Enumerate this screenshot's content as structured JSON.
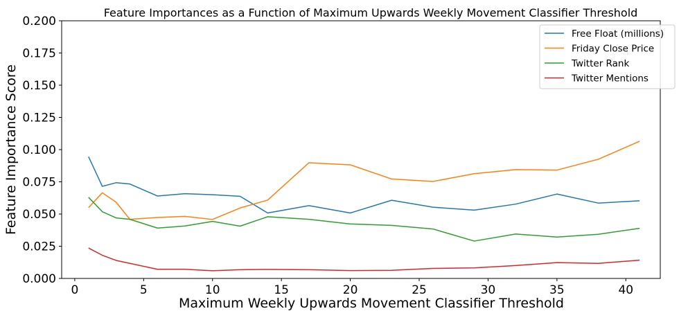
{
  "chart_data": {
    "type": "line",
    "title": "Feature Importances as a Function of Maximum Upwards Weekly Movement Classifier Threshold",
    "xlabel": "Maximum Weekly Upwards Movement Classifier Threshold",
    "ylabel": "Feature Importance Score",
    "xlim": [
      -0.95,
      42.5
    ],
    "ylim": [
      0.0,
      0.2
    ],
    "xticks": [
      0,
      5,
      10,
      15,
      20,
      25,
      30,
      35,
      40
    ],
    "yticks": [
      0.0,
      0.025,
      0.05,
      0.075,
      0.1,
      0.125,
      0.15,
      0.175,
      0.2
    ],
    "xtick_labels": [
      "0",
      "5",
      "10",
      "15",
      "20",
      "25",
      "30",
      "35",
      "40"
    ],
    "ytick_labels": [
      "0.000",
      "0.025",
      "0.050",
      "0.075",
      "0.100",
      "0.125",
      "0.150",
      "0.175",
      "0.200"
    ],
    "grid": false,
    "legend_position": "top-right",
    "x": [
      1,
      2,
      3,
      4,
      6,
      8,
      10,
      12,
      14,
      17,
      20,
      23,
      26,
      29,
      32,
      35,
      38,
      41
    ],
    "series": [
      {
        "name": "Free Float (millions)",
        "color": "#1f77b4",
        "values": [
          0.0945,
          0.0715,
          0.0743,
          0.0733,
          0.064,
          0.0658,
          0.065,
          0.0638,
          0.0508,
          0.0565,
          0.0508,
          0.0607,
          0.0553,
          0.053,
          0.0577,
          0.0655,
          0.0585,
          0.0603
        ]
      },
      {
        "name": "Friday Close Price",
        "color": "#ff7f0e",
        "values": [
          0.055,
          0.0665,
          0.0592,
          0.0459,
          0.0473,
          0.0482,
          0.0458,
          0.0547,
          0.0608,
          0.0898,
          0.0882,
          0.0772,
          0.0753,
          0.0813,
          0.0845,
          0.0841,
          0.0925,
          0.1065
        ]
      },
      {
        "name": "Twitter Rank",
        "color": "#2ca02c",
        "values": [
          0.063,
          0.0518,
          0.047,
          0.0459,
          0.0391,
          0.0407,
          0.0443,
          0.0406,
          0.0479,
          0.0459,
          0.0423,
          0.0412,
          0.0384,
          0.029,
          0.0345,
          0.0321,
          0.0343,
          0.0389
        ]
      },
      {
        "name": "Twitter Mentions",
        "color": "#d62728",
        "values": [
          0.0236,
          0.018,
          0.014,
          0.0117,
          0.0071,
          0.0071,
          0.006,
          0.0068,
          0.007,
          0.0068,
          0.0061,
          0.0063,
          0.0078,
          0.0082,
          0.01,
          0.0123,
          0.0117,
          0.0142
        ]
      }
    ]
  }
}
